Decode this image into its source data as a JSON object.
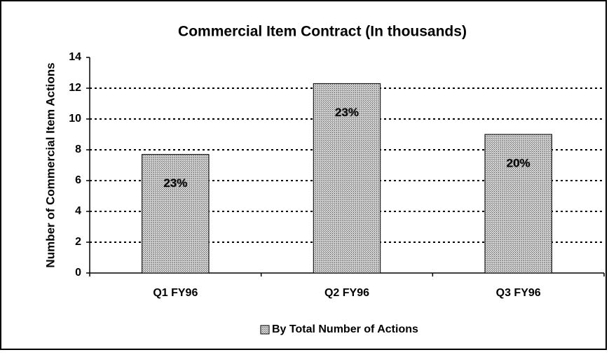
{
  "chart_data": {
    "type": "bar",
    "title": "Commercial Item Contract (In thousands)",
    "y_label": "Number of Commercial Item Actions",
    "categories": [
      "Q1 FY96",
      "Q2 FY96",
      "Q3 FY96"
    ],
    "series": [
      {
        "name": "By Total Number of Actions",
        "color": "#a8a8a8",
        "values": [
          7.7,
          12.3,
          9.0
        ]
      }
    ],
    "annotations": [
      "23%",
      "23%",
      "20%"
    ],
    "ylim": [
      0,
      14
    ],
    "yticks": [
      0,
      2,
      4,
      6,
      8,
      10,
      12,
      14
    ],
    "grid": true,
    "legend": "bottom"
  }
}
